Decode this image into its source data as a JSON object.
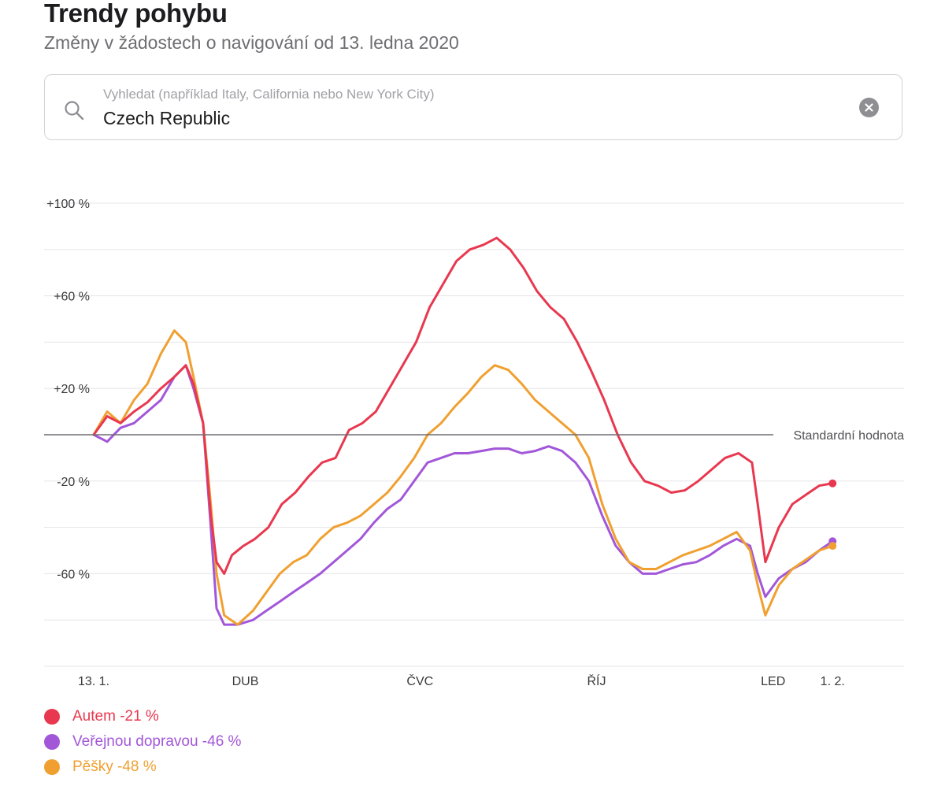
{
  "header": {
    "title": "Trendy pohybu",
    "subtitle": "Změny v žádostech o navigování od 13. ledna 2020"
  },
  "search": {
    "placeholder": "Vyhledat (například Italy, California nebo New York City)",
    "value": "Czech Republic",
    "icon": "search-icon",
    "clear_icon": "clear-icon"
  },
  "chart_data": {
    "type": "line",
    "title": "",
    "xlabel": "",
    "ylabel": "",
    "x_range": [
      "2020-01-13",
      "2021-02-02"
    ],
    "ylim": [
      -95,
      105
    ],
    "y_ticks": [
      {
        "value": 100,
        "label": "+100 %"
      },
      {
        "value": 60,
        "label": "+60 %"
      },
      {
        "value": 20,
        "label": "+20 %"
      },
      {
        "value": -20,
        "label": "-20 %"
      },
      {
        "value": -60,
        "label": "-60 %"
      }
    ],
    "x_ticks": [
      {
        "date": "2020-01-13",
        "label": "13. 1."
      },
      {
        "date": "2020-04-01",
        "label": "DUB"
      },
      {
        "date": "2020-07-01",
        "label": "ČVC"
      },
      {
        "date": "2020-10-01",
        "label": "ŘÍJ"
      },
      {
        "date": "2021-01-01",
        "label": "LED"
      },
      {
        "date": "2021-02-01",
        "label": "1. 2."
      }
    ],
    "baseline": {
      "value": 0,
      "label": "Standardní hodnota"
    },
    "grid": true,
    "legend_position": "bottom-left",
    "series": [
      {
        "name": "Autem",
        "legend_label": "Autem -21 %",
        "color": "#e8384f",
        "points": [
          [
            "2020-01-13",
            0
          ],
          [
            "2020-01-20",
            8
          ],
          [
            "2020-01-27",
            5
          ],
          [
            "2020-02-03",
            10
          ],
          [
            "2020-02-10",
            14
          ],
          [
            "2020-02-17",
            20
          ],
          [
            "2020-02-24",
            25
          ],
          [
            "2020-03-01",
            30
          ],
          [
            "2020-03-05",
            22
          ],
          [
            "2020-03-10",
            5
          ],
          [
            "2020-03-14",
            -35
          ],
          [
            "2020-03-17",
            -55
          ],
          [
            "2020-03-21",
            -60
          ],
          [
            "2020-03-25",
            -52
          ],
          [
            "2020-03-31",
            -48
          ],
          [
            "2020-04-06",
            -45
          ],
          [
            "2020-04-13",
            -40
          ],
          [
            "2020-04-20",
            -30
          ],
          [
            "2020-04-27",
            -25
          ],
          [
            "2020-05-04",
            -18
          ],
          [
            "2020-05-11",
            -12
          ],
          [
            "2020-05-18",
            -10
          ],
          [
            "2020-05-25",
            2
          ],
          [
            "2020-06-01",
            5
          ],
          [
            "2020-06-08",
            10
          ],
          [
            "2020-06-15",
            20
          ],
          [
            "2020-06-22",
            30
          ],
          [
            "2020-06-29",
            40
          ],
          [
            "2020-07-06",
            55
          ],
          [
            "2020-07-13",
            65
          ],
          [
            "2020-07-20",
            75
          ],
          [
            "2020-07-27",
            80
          ],
          [
            "2020-08-03",
            82
          ],
          [
            "2020-08-10",
            85
          ],
          [
            "2020-08-17",
            80
          ],
          [
            "2020-08-24",
            72
          ],
          [
            "2020-08-31",
            62
          ],
          [
            "2020-09-07",
            55
          ],
          [
            "2020-09-14",
            50
          ],
          [
            "2020-09-21",
            40
          ],
          [
            "2020-09-28",
            28
          ],
          [
            "2020-10-05",
            15
          ],
          [
            "2020-10-12",
            0
          ],
          [
            "2020-10-19",
            -12
          ],
          [
            "2020-10-26",
            -20
          ],
          [
            "2020-11-02",
            -22
          ],
          [
            "2020-11-09",
            -25
          ],
          [
            "2020-11-16",
            -24
          ],
          [
            "2020-11-23",
            -20
          ],
          [
            "2020-11-30",
            -15
          ],
          [
            "2020-12-07",
            -10
          ],
          [
            "2020-12-14",
            -8
          ],
          [
            "2020-12-21",
            -12
          ],
          [
            "2020-12-24",
            -30
          ],
          [
            "2020-12-28",
            -55
          ],
          [
            "2021-01-04",
            -40
          ],
          [
            "2021-01-11",
            -30
          ],
          [
            "2021-01-18",
            -26
          ],
          [
            "2021-01-25",
            -22
          ],
          [
            "2021-02-01",
            -21
          ]
        ]
      },
      {
        "name": "Veřejnou dopravou",
        "legend_label": "Veřejnou dopravou -46 %",
        "color": "#a257d9",
        "points": [
          [
            "2020-01-13",
            0
          ],
          [
            "2020-01-20",
            -3
          ],
          [
            "2020-01-27",
            3
          ],
          [
            "2020-02-03",
            5
          ],
          [
            "2020-02-10",
            10
          ],
          [
            "2020-02-17",
            15
          ],
          [
            "2020-02-24",
            25
          ],
          [
            "2020-03-01",
            30
          ],
          [
            "2020-03-05",
            20
          ],
          [
            "2020-03-10",
            5
          ],
          [
            "2020-03-14",
            -40
          ],
          [
            "2020-03-17",
            -75
          ],
          [
            "2020-03-21",
            -82
          ],
          [
            "2020-03-28",
            -82
          ],
          [
            "2020-04-05",
            -80
          ],
          [
            "2020-04-12",
            -76
          ],
          [
            "2020-04-19",
            -72
          ],
          [
            "2020-04-26",
            -68
          ],
          [
            "2020-05-03",
            -64
          ],
          [
            "2020-05-10",
            -60
          ],
          [
            "2020-05-17",
            -55
          ],
          [
            "2020-05-24",
            -50
          ],
          [
            "2020-05-31",
            -45
          ],
          [
            "2020-06-07",
            -38
          ],
          [
            "2020-06-14",
            -32
          ],
          [
            "2020-06-21",
            -28
          ],
          [
            "2020-06-28",
            -20
          ],
          [
            "2020-07-05",
            -12
          ],
          [
            "2020-07-12",
            -10
          ],
          [
            "2020-07-19",
            -8
          ],
          [
            "2020-07-26",
            -8
          ],
          [
            "2020-08-02",
            -7
          ],
          [
            "2020-08-09",
            -6
          ],
          [
            "2020-08-16",
            -6
          ],
          [
            "2020-08-23",
            -8
          ],
          [
            "2020-08-30",
            -7
          ],
          [
            "2020-09-06",
            -5
          ],
          [
            "2020-09-13",
            -7
          ],
          [
            "2020-09-20",
            -12
          ],
          [
            "2020-09-27",
            -20
          ],
          [
            "2020-10-04",
            -35
          ],
          [
            "2020-10-11",
            -48
          ],
          [
            "2020-10-18",
            -55
          ],
          [
            "2020-10-25",
            -60
          ],
          [
            "2020-11-01",
            -60
          ],
          [
            "2020-11-08",
            -58
          ],
          [
            "2020-11-15",
            -56
          ],
          [
            "2020-11-22",
            -55
          ],
          [
            "2020-11-29",
            -52
          ],
          [
            "2020-12-06",
            -48
          ],
          [
            "2020-12-13",
            -45
          ],
          [
            "2020-12-20",
            -48
          ],
          [
            "2020-12-24",
            -60
          ],
          [
            "2020-12-28",
            -70
          ],
          [
            "2021-01-04",
            -62
          ],
          [
            "2021-01-11",
            -58
          ],
          [
            "2021-01-18",
            -55
          ],
          [
            "2021-01-25",
            -50
          ],
          [
            "2021-02-01",
            -46
          ]
        ]
      },
      {
        "name": "Pěšky",
        "legend_label": "Pěšky -48 %",
        "color": "#f0a030",
        "points": [
          [
            "2020-01-13",
            0
          ],
          [
            "2020-01-20",
            10
          ],
          [
            "2020-01-27",
            5
          ],
          [
            "2020-02-03",
            15
          ],
          [
            "2020-02-10",
            22
          ],
          [
            "2020-02-17",
            35
          ],
          [
            "2020-02-24",
            45
          ],
          [
            "2020-03-01",
            40
          ],
          [
            "2020-03-05",
            25
          ],
          [
            "2020-03-10",
            5
          ],
          [
            "2020-03-14",
            -30
          ],
          [
            "2020-03-17",
            -60
          ],
          [
            "2020-03-21",
            -78
          ],
          [
            "2020-03-28",
            -82
          ],
          [
            "2020-04-05",
            -76
          ],
          [
            "2020-04-12",
            -68
          ],
          [
            "2020-04-19",
            -60
          ],
          [
            "2020-04-26",
            -55
          ],
          [
            "2020-05-03",
            -52
          ],
          [
            "2020-05-10",
            -45
          ],
          [
            "2020-05-17",
            -40
          ],
          [
            "2020-05-24",
            -38
          ],
          [
            "2020-05-31",
            -35
          ],
          [
            "2020-06-07",
            -30
          ],
          [
            "2020-06-14",
            -25
          ],
          [
            "2020-06-21",
            -18
          ],
          [
            "2020-06-28",
            -10
          ],
          [
            "2020-07-05",
            0
          ],
          [
            "2020-07-12",
            5
          ],
          [
            "2020-07-19",
            12
          ],
          [
            "2020-07-26",
            18
          ],
          [
            "2020-08-02",
            25
          ],
          [
            "2020-08-09",
            30
          ],
          [
            "2020-08-16",
            28
          ],
          [
            "2020-08-23",
            22
          ],
          [
            "2020-08-30",
            15
          ],
          [
            "2020-09-06",
            10
          ],
          [
            "2020-09-13",
            5
          ],
          [
            "2020-09-20",
            0
          ],
          [
            "2020-09-27",
            -10
          ],
          [
            "2020-10-04",
            -30
          ],
          [
            "2020-10-11",
            -45
          ],
          [
            "2020-10-18",
            -55
          ],
          [
            "2020-10-25",
            -58
          ],
          [
            "2020-11-01",
            -58
          ],
          [
            "2020-11-08",
            -55
          ],
          [
            "2020-11-15",
            -52
          ],
          [
            "2020-11-22",
            -50
          ],
          [
            "2020-11-29",
            -48
          ],
          [
            "2020-12-06",
            -45
          ],
          [
            "2020-12-13",
            -42
          ],
          [
            "2020-12-20",
            -50
          ],
          [
            "2020-12-24",
            -65
          ],
          [
            "2020-12-28",
            -78
          ],
          [
            "2021-01-04",
            -65
          ],
          [
            "2021-01-11",
            -58
          ],
          [
            "2021-01-18",
            -54
          ],
          [
            "2021-01-25",
            -50
          ],
          [
            "2021-02-01",
            -48
          ]
        ]
      }
    ]
  }
}
